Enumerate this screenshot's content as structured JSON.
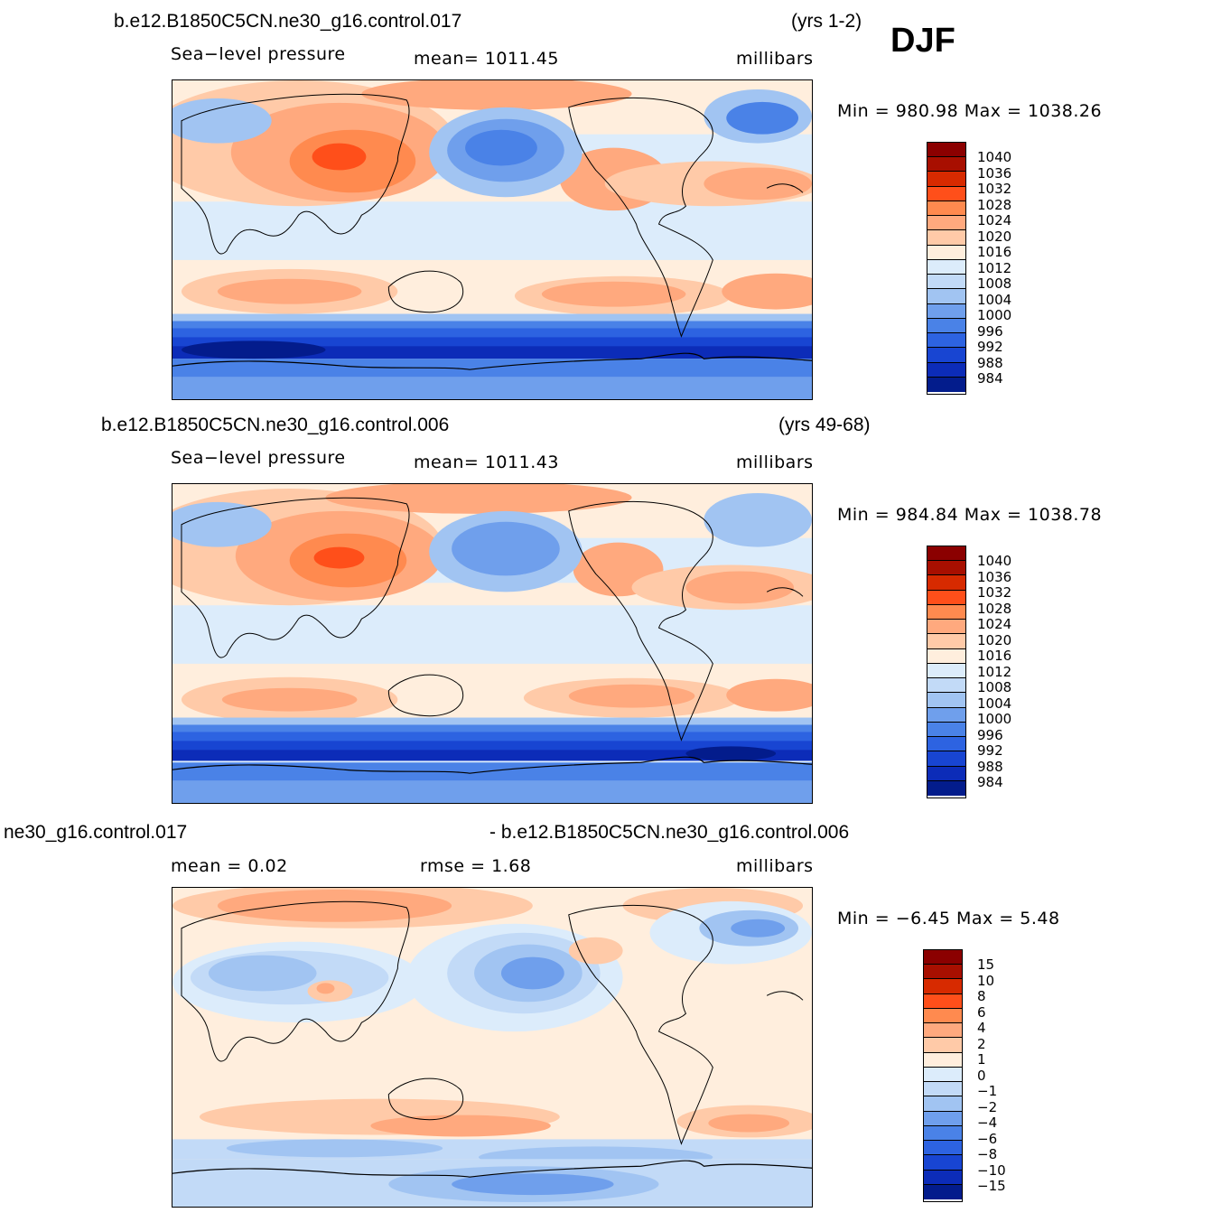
{
  "season": "DJF",
  "colors": {
    "abs_scale": [
      "#8b0000",
      "#a80f00",
      "#d72a00",
      "#ff4f1a",
      "#ff8a4f",
      "#ffa97e",
      "#ffcaa8",
      "#ffeedd",
      "#dcecfb",
      "#c2daf7",
      "#a1c4f2",
      "#6f9fec",
      "#4a82e7",
      "#2d63e1",
      "#1845d2",
      "#0c2cb8",
      "#031c8c"
    ],
    "diff_scale": [
      "#8b0000",
      "#a80f00",
      "#d72a00",
      "#ff4f1a",
      "#ff8a4f",
      "#ffa97e",
      "#ffcaa8",
      "#ffeedd",
      "#dcecfb",
      "#c2daf7",
      "#a1c4f2",
      "#6f9fec",
      "#4a82e7",
      "#2d63e1",
      "#1845d2",
      "#0c2cb8",
      "#031c8c"
    ]
  },
  "panel1": {
    "case": "b.e12.B1850C5CN.ne30_g16.control.017",
    "years": "(yrs 1-2)",
    "variable": "Sea−level pressure",
    "mean": "mean=  1011.45",
    "units": "millibars",
    "minmax": "Min  =  980.98  Max  =  1038.26",
    "legend": [
      "1040",
      "1036",
      "1032",
      "1028",
      "1024",
      "1020",
      "1016",
      "1012",
      "1008",
      "1004",
      "1000",
      "996",
      "992",
      "988",
      "984"
    ]
  },
  "panel2": {
    "case": "b.e12.B1850C5CN.ne30_g16.control.006",
    "years": "(yrs 49-68)",
    "variable": "Sea−level pressure",
    "mean": "mean=  1011.43",
    "units": "millibars",
    "minmax": "Min  =  984.84  Max  =  1038.78",
    "legend": [
      "1040",
      "1036",
      "1032",
      "1028",
      "1024",
      "1020",
      "1016",
      "1012",
      "1008",
      "1004",
      "1000",
      "996",
      "992",
      "988",
      "984"
    ]
  },
  "panel3": {
    "case_left": "ne30_g16.control.017",
    "case_right": "- b.e12.B1850C5CN.ne30_g16.control.006",
    "mean": "mean  =     0.02",
    "rmse": "rmse  =     1.68",
    "units": "millibars",
    "minmax": "Min  =    −6.45  Max  =      5.48",
    "legend": [
      "15",
      "10",
      "8",
      "6",
      "4",
      "2",
      "1",
      "0",
      "−1",
      "−2",
      "−4",
      "−6",
      "−8",
      "−10",
      "−15"
    ]
  }
}
